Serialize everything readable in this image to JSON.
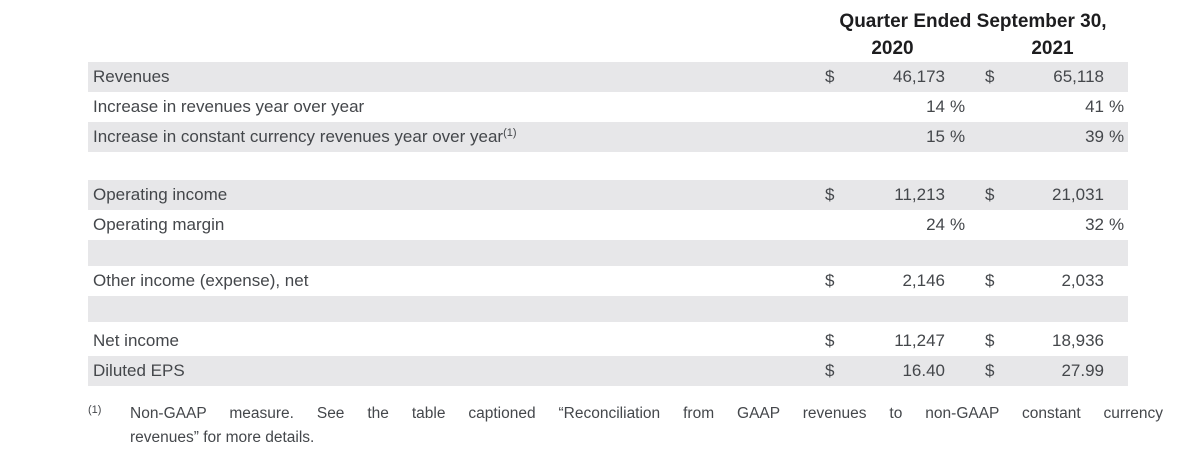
{
  "table": {
    "header": {
      "period": "Quarter Ended September 30,",
      "year_2020": "2020",
      "year_2021": "2021"
    },
    "symbols": {
      "dollar": "$",
      "percent": "%"
    },
    "rows": [
      {
        "label": "Revenues",
        "unit": "dollar",
        "y2020": "46,173",
        "y2021": "65,118"
      },
      {
        "label": "Increase in revenues year over year",
        "unit": "percent",
        "y2020": "14",
        "y2021": "41"
      },
      {
        "label": "Increase in constant currency revenues year over year",
        "footnote_ref": "(1)",
        "unit": "percent",
        "y2020": "15",
        "y2021": "39"
      },
      {
        "label": "Operating income",
        "unit": "dollar",
        "y2020": "11,213",
        "y2021": "21,031"
      },
      {
        "label": "Operating margin",
        "unit": "percent",
        "y2020": "24",
        "y2021": "32"
      },
      {
        "label": "Other income (expense), net",
        "unit": "dollar",
        "y2020": "2,146",
        "y2021": "2,033"
      },
      {
        "label": "Net income",
        "unit": "dollar",
        "y2020": "11,247",
        "y2021": "18,936"
      },
      {
        "label": "Diluted EPS",
        "unit": "dollar",
        "y2020": "16.40",
        "y2021": "27.99"
      }
    ]
  },
  "footnote": {
    "marker": "(1)",
    "line1": "Non-GAAP measure. See the table captioned “Reconciliation from GAAP revenues to non-GAAP constant currency",
    "line2": "revenues” for more details."
  }
}
